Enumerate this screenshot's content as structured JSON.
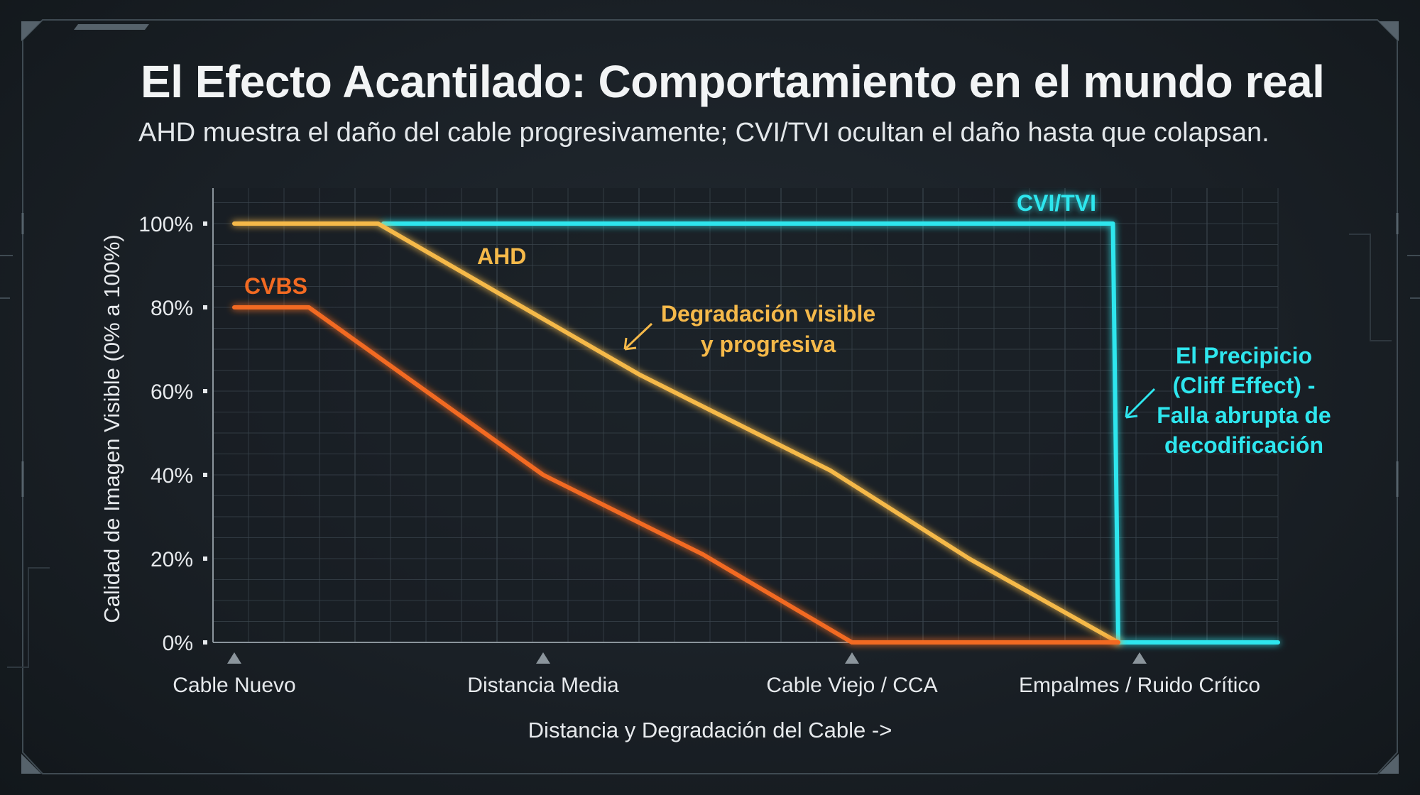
{
  "title": "El Efecto Acantilado: Comportamiento en el mundo real",
  "subtitle": "AHD muestra el daño del cable progresivamente; CVI/TVI ocultan el daño hasta que colapsan.",
  "colors": {
    "background": "#1a2026",
    "grid": "#3a444c",
    "cvi_tvi": "#2ee6ee",
    "ahd": "#f5b94a",
    "cvbs": "#f26a22",
    "text": "#e6e9ec"
  },
  "chart_data": {
    "type": "line",
    "xlabel": "Distancia y Degradación del Cable ->",
    "ylabel": "Calidad de Imagen Visible (0% a 100%)",
    "ylim": [
      0,
      100
    ],
    "xlim": [
      0,
      100
    ],
    "yticks": [
      "0%",
      "20%",
      "40%",
      "60%",
      "80%",
      "100%"
    ],
    "ytick_values": [
      0,
      20,
      40,
      60,
      80,
      100
    ],
    "xticks": [
      "Cable Nuevo",
      "Distancia Media",
      "Cable Viejo / CCA",
      "Empalmes / Ruido Crítico"
    ],
    "xtick_values": [
      2,
      31,
      60,
      87
    ],
    "grid": true,
    "series": [
      {
        "name": "CVI/TVI",
        "color": "#2ee6ee",
        "points": [
          [
            16,
            100
          ],
          [
            84.5,
            100
          ],
          [
            85,
            0
          ],
          [
            100,
            0
          ]
        ]
      },
      {
        "name": "AHD",
        "color": "#f5b94a",
        "points": [
          [
            2,
            100
          ],
          [
            15.5,
            100
          ],
          [
            40,
            64
          ],
          [
            58,
            41
          ],
          [
            71,
            20
          ],
          [
            85,
            0
          ]
        ]
      },
      {
        "name": "CVBS",
        "color": "#f26a22",
        "points": [
          [
            2,
            80
          ],
          [
            9,
            80
          ],
          [
            31,
            40
          ],
          [
            46,
            21
          ],
          [
            60,
            0
          ],
          [
            85,
            0
          ]
        ]
      }
    ],
    "annotations": [
      {
        "id": "ahd-note",
        "lines": [
          "Degradación visible",
          "y progresiva"
        ],
        "color": "#f5b94a"
      },
      {
        "id": "cliff-note",
        "lines": [
          "El Precipicio",
          "(Cliff Effect) -",
          "Falla abrupta de",
          "decodificación"
        ],
        "color": "#2ee6ee"
      }
    ]
  }
}
